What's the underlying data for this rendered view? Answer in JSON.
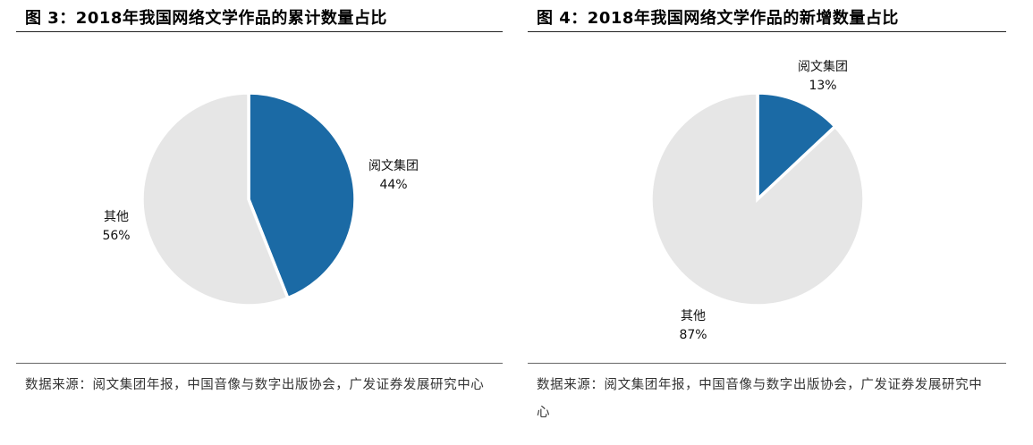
{
  "charts": [
    {
      "figure_title": "图 3：2018年我国网络文学作品的累计数量占比",
      "source_note": "数据来源：阅文集团年报，中国音像与数字出版协会，广发证券发展研究中心"
    },
    {
      "figure_title": "图 4：2018年我国网络文学作品的新增数量占比",
      "source_note": "数据来源：阅文集团年报，中国音像与数字出版协会，广发证券发展研究中心"
    }
  ],
  "chart_data": [
    {
      "type": "pie",
      "title": "",
      "slices": [
        {
          "label": "阅文集团",
          "value_label": "44%",
          "value": 44,
          "color": "#1b6aa5"
        },
        {
          "label": "其他",
          "value_label": "56%",
          "value": 56,
          "color": "#e6e6e6"
        }
      ]
    },
    {
      "type": "pie",
      "title": "",
      "slices": [
        {
          "label": "阅文集团",
          "value_label": "13%",
          "value": 13,
          "color": "#1b6aa5"
        },
        {
          "label": "其他",
          "value_label": "87%",
          "value": 87,
          "color": "#e6e6e6"
        }
      ]
    }
  ]
}
